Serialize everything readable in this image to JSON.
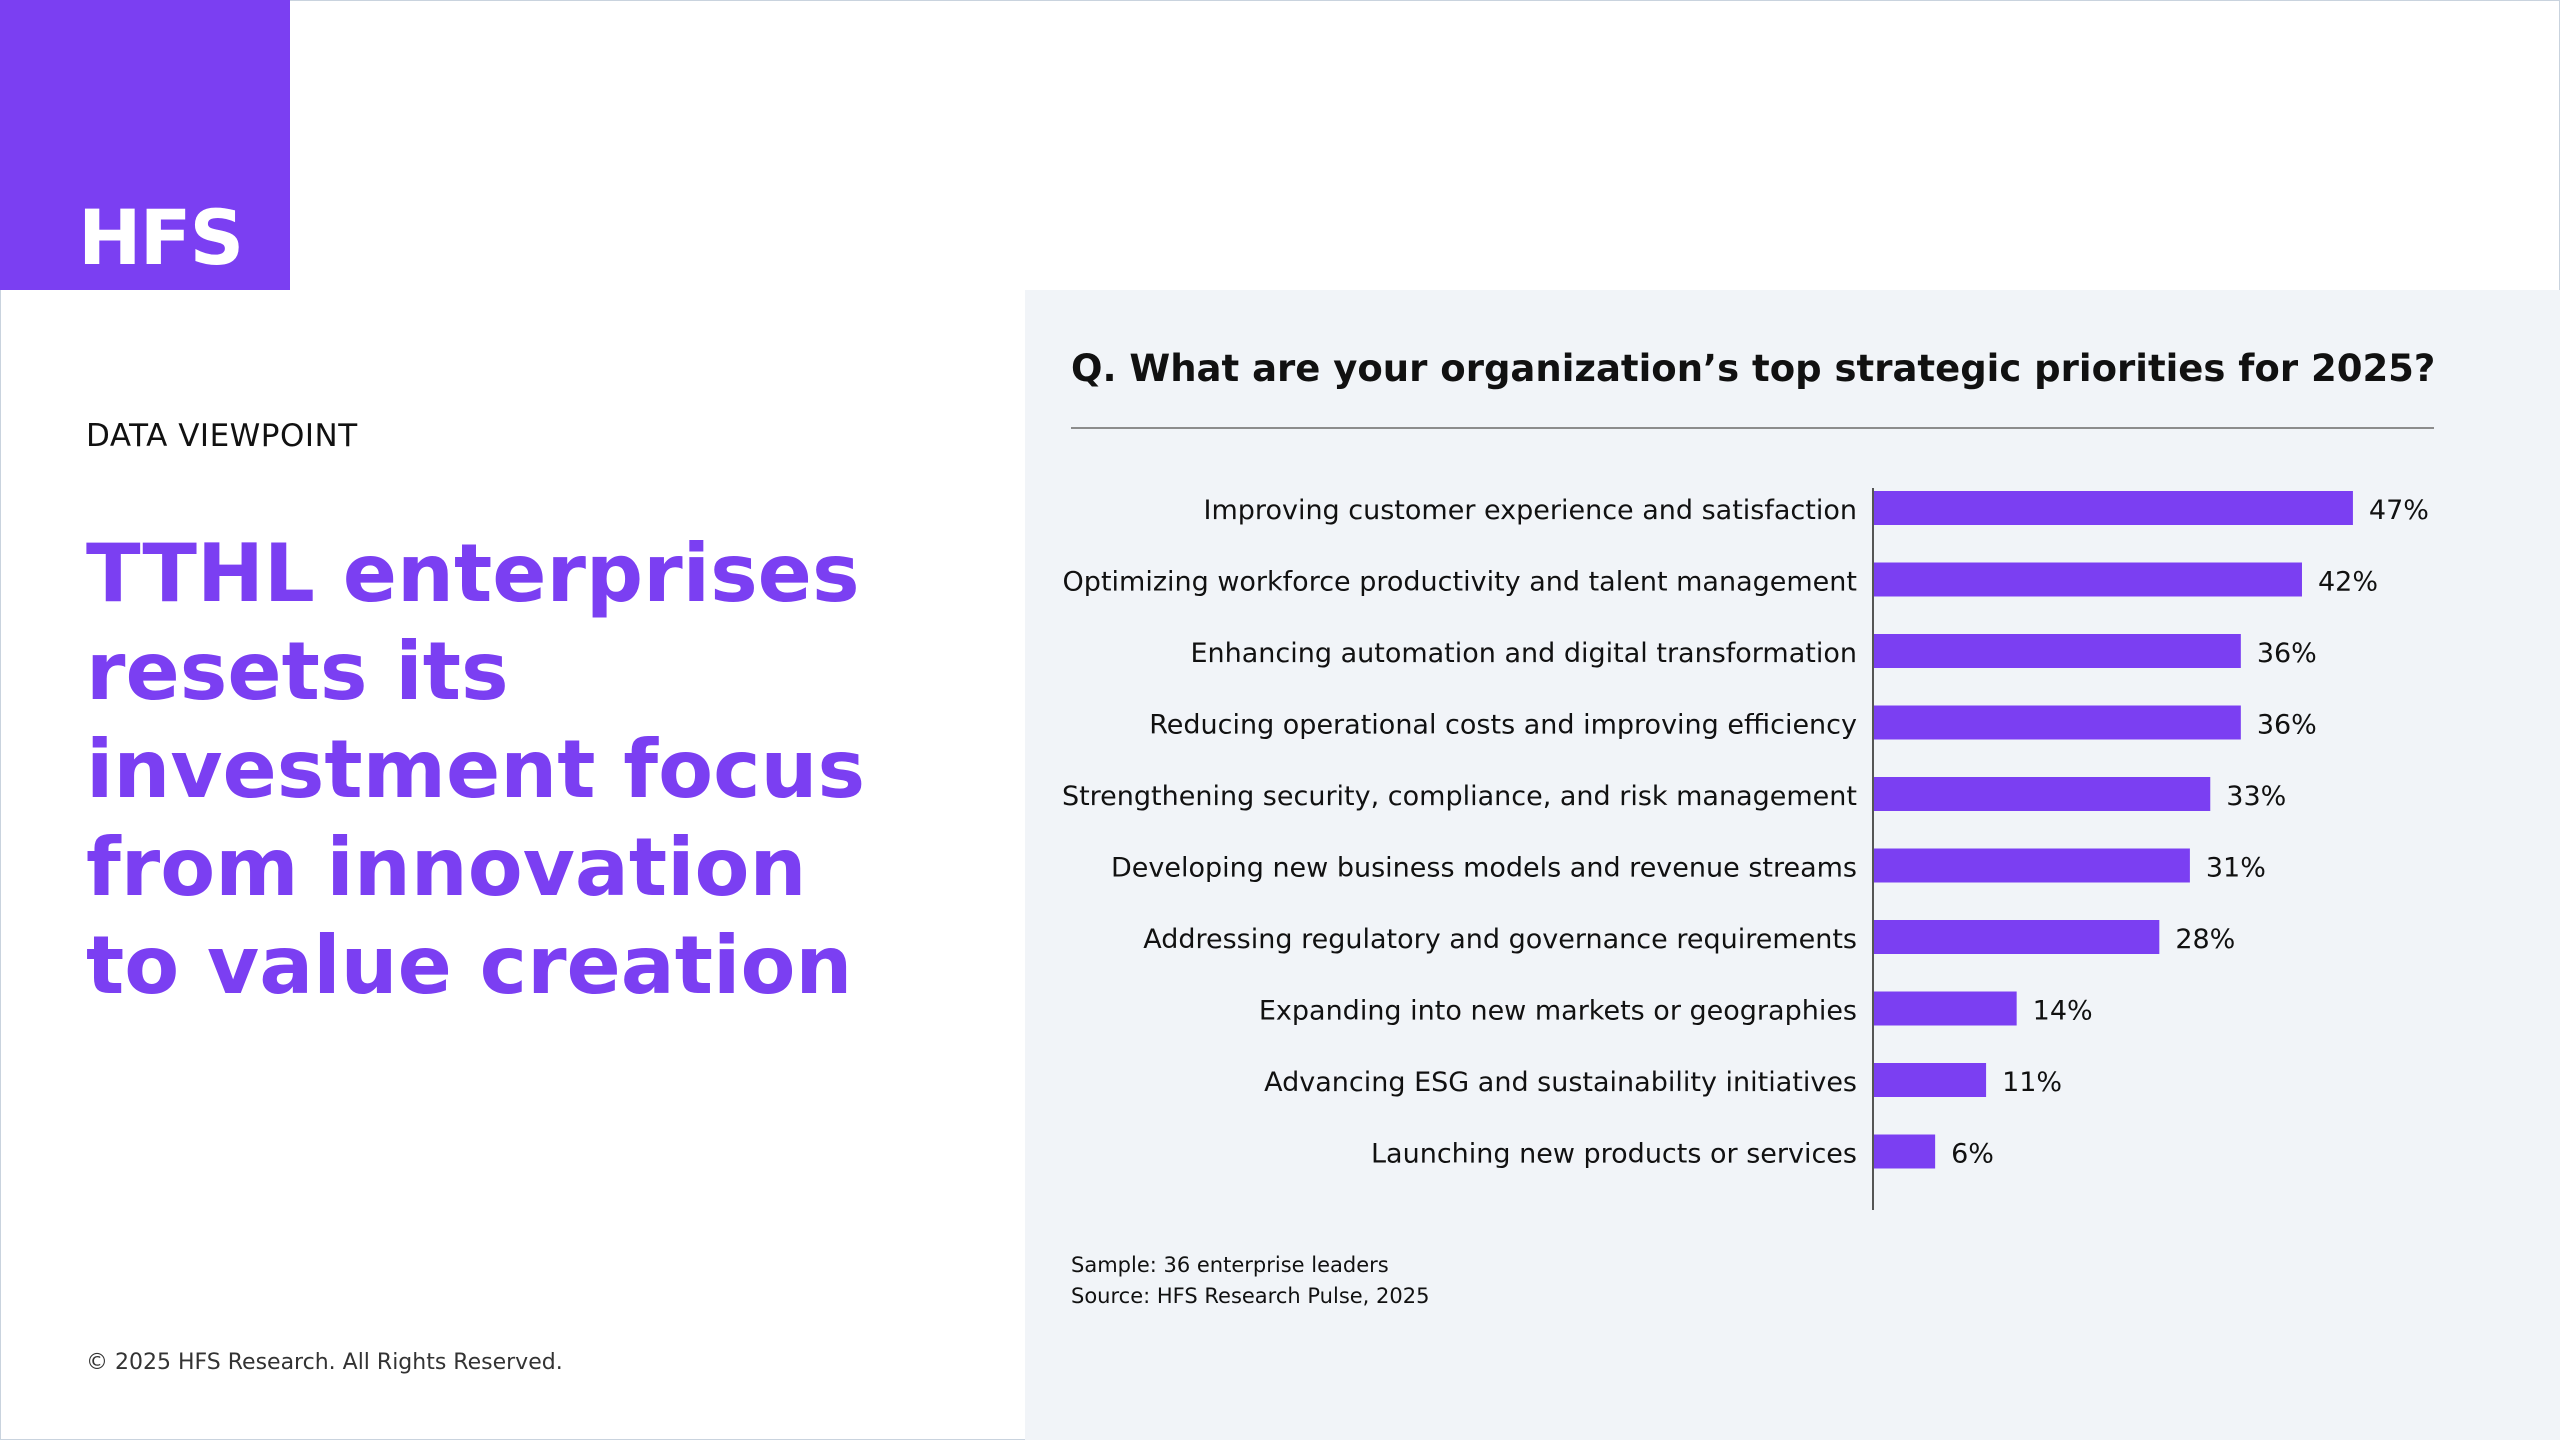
{
  "brand": {
    "logo_text": "HFS",
    "accent_color": "#7b3ff2"
  },
  "left": {
    "eyebrow": "DATA VIEWPOINT",
    "headline": "TTHL enterprises\nresets its\ninvestment focus\nfrom innovation\nto value creation",
    "copyright": "© 2025 HFS Research. All Rights Reserved."
  },
  "panel": {
    "question": "Q. What are your organization’s top strategic priorities for 2025?",
    "sample": "Sample: 36 enterprise leaders",
    "source": "Source: HFS Research Pulse, 2025",
    "background": "#f1f4f8"
  },
  "chart_data": {
    "type": "bar",
    "orientation": "horizontal",
    "title": "Q. What are your organization’s top strategic priorities for 2025?",
    "xlabel": "",
    "ylabel": "",
    "grid": false,
    "bar_color": "#7b3ff2",
    "categories": [
      "Improving customer experience and satisfaction",
      "Optimizing workforce productivity and talent management",
      "Enhancing automation and digital transformation",
      "Reducing operational costs and improving efficiency",
      "Strengthening security, compliance, and risk management",
      "Developing new business models and revenue streams",
      "Addressing regulatory and governance requirements",
      "Expanding into new markets or geographies",
      "Advancing ESG and sustainability initiatives",
      "Launching new products or services"
    ],
    "values": [
      47,
      42,
      36,
      36,
      33,
      31,
      28,
      14,
      11,
      6
    ],
    "value_labels": [
      "47%",
      "42%",
      "36%",
      "36%",
      "33%",
      "31%",
      "28%",
      "14%",
      "11%",
      "6%"
    ]
  }
}
